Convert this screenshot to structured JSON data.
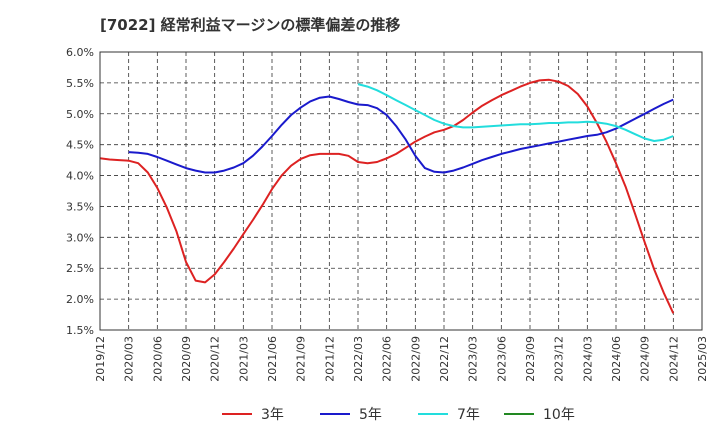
{
  "title": "[7022]  経常利益マージンの標準偏差の推移",
  "chart_data": {
    "type": "line",
    "title": "[7022]  経常利益マージンの標準偏差の推移",
    "xlabel": "",
    "ylabel": "",
    "x_ticks": [
      "2019/12",
      "2020/03",
      "2020/06",
      "2020/09",
      "2020/12",
      "2021/03",
      "2021/06",
      "2021/09",
      "2021/12",
      "2022/03",
      "2022/06",
      "2022/09",
      "2022/12",
      "2023/03",
      "2023/06",
      "2023/09",
      "2023/12",
      "2024/03",
      "2024/06",
      "2024/09",
      "2024/12",
      "2025/03"
    ],
    "y_ticks": [
      "1.5%",
      "2.0%",
      "2.5%",
      "3.0%",
      "3.5%",
      "4.0%",
      "4.5%",
      "5.0%",
      "5.5%",
      "6.0%"
    ],
    "ylim": [
      1.5,
      6.0
    ],
    "grid": true,
    "legend_position": "bottom",
    "series": [
      {
        "name": "3年",
        "color": "#dd2222",
        "x": [
          "2019/12",
          "2020/01",
          "2020/02",
          "2020/03",
          "2020/04",
          "2020/05",
          "2020/06",
          "2020/07",
          "2020/08",
          "2020/09",
          "2020/10",
          "2020/11",
          "2020/12",
          "2021/01",
          "2021/02",
          "2021/03",
          "2021/04",
          "2021/05",
          "2021/06",
          "2021/07",
          "2021/08",
          "2021/09",
          "2021/10",
          "2021/11",
          "2021/12",
          "2022/01",
          "2022/02",
          "2022/03",
          "2022/04",
          "2022/05",
          "2022/06",
          "2022/07",
          "2022/08",
          "2022/09",
          "2022/10",
          "2022/11",
          "2022/12",
          "2023/01",
          "2023/02",
          "2023/03",
          "2023/04",
          "2023/05",
          "2023/06",
          "2023/07",
          "2023/08",
          "2023/09",
          "2023/10",
          "2023/11",
          "2023/12",
          "2024/01",
          "2024/02",
          "2024/03",
          "2024/04",
          "2024/05",
          "2024/06",
          "2024/07",
          "2024/08",
          "2024/09",
          "2024/10",
          "2024/11",
          "2024/12"
        ],
        "values": [
          4.28,
          4.26,
          4.25,
          4.24,
          4.2,
          4.05,
          3.8,
          3.48,
          3.1,
          2.6,
          2.3,
          2.27,
          2.4,
          2.6,
          2.82,
          3.05,
          3.28,
          3.52,
          3.78,
          4.0,
          4.16,
          4.27,
          4.33,
          4.35,
          4.35,
          4.35,
          4.32,
          4.22,
          4.2,
          4.22,
          4.28,
          4.35,
          4.45,
          4.55,
          4.63,
          4.7,
          4.74,
          4.8,
          4.9,
          5.02,
          5.13,
          5.22,
          5.3,
          5.37,
          5.44,
          5.5,
          5.54,
          5.55,
          5.52,
          5.45,
          5.32,
          5.12,
          4.85,
          4.55,
          4.2,
          3.82,
          3.38,
          2.92,
          2.48,
          2.1,
          1.77
        ]
      },
      {
        "name": "5年",
        "color": "#1a1acc",
        "x": [
          "2020/03",
          "2020/04",
          "2020/05",
          "2020/06",
          "2020/07",
          "2020/08",
          "2020/09",
          "2020/10",
          "2020/11",
          "2020/12",
          "2021/01",
          "2021/02",
          "2021/03",
          "2021/04",
          "2021/05",
          "2021/06",
          "2021/07",
          "2021/08",
          "2021/09",
          "2021/10",
          "2021/11",
          "2021/12",
          "2022/01",
          "2022/02",
          "2022/03",
          "2022/04",
          "2022/05",
          "2022/06",
          "2022/07",
          "2022/08",
          "2022/09",
          "2022/10",
          "2022/11",
          "2022/12",
          "2023/01",
          "2023/02",
          "2023/03",
          "2023/04",
          "2023/05",
          "2023/06",
          "2023/07",
          "2023/08",
          "2023/09",
          "2023/10",
          "2023/11",
          "2023/12",
          "2024/01",
          "2024/02",
          "2024/03",
          "2024/04",
          "2024/05",
          "2024/06",
          "2024/07",
          "2024/08",
          "2024/09",
          "2024/10",
          "2024/11",
          "2024/12"
        ],
        "values": [
          4.38,
          4.37,
          4.35,
          4.3,
          4.24,
          4.18,
          4.12,
          4.08,
          4.05,
          4.05,
          4.08,
          4.13,
          4.2,
          4.32,
          4.47,
          4.64,
          4.82,
          4.98,
          5.1,
          5.2,
          5.26,
          5.28,
          5.24,
          5.19,
          5.15,
          5.14,
          5.09,
          4.98,
          4.8,
          4.58,
          4.32,
          4.12,
          4.06,
          4.05,
          4.08,
          4.13,
          4.19,
          4.25,
          4.3,
          4.35,
          4.39,
          4.43,
          4.46,
          4.49,
          4.52,
          4.55,
          4.58,
          4.61,
          4.64,
          4.66,
          4.7,
          4.76,
          4.84,
          4.92,
          5.0,
          5.08,
          5.16,
          5.23
        ]
      },
      {
        "name": "7年",
        "color": "#22dddd",
        "x": [
          "2022/03",
          "2022/04",
          "2022/05",
          "2022/06",
          "2022/07",
          "2022/08",
          "2022/09",
          "2022/10",
          "2022/11",
          "2022/12",
          "2023/01",
          "2023/02",
          "2023/03",
          "2023/04",
          "2023/05",
          "2023/06",
          "2023/07",
          "2023/08",
          "2023/09",
          "2023/10",
          "2023/11",
          "2023/12",
          "2024/01",
          "2024/02",
          "2024/03",
          "2024/04",
          "2024/05",
          "2024/06",
          "2024/07",
          "2024/08",
          "2024/09",
          "2024/10",
          "2024/11",
          "2024/12"
        ],
        "values": [
          5.48,
          5.44,
          5.38,
          5.3,
          5.22,
          5.14,
          5.06,
          4.98,
          4.9,
          4.84,
          4.8,
          4.78,
          4.78,
          4.79,
          4.8,
          4.81,
          4.82,
          4.83,
          4.83,
          4.84,
          4.85,
          4.85,
          4.86,
          4.86,
          4.87,
          4.86,
          4.84,
          4.8,
          4.74,
          4.67,
          4.6,
          4.56,
          4.58,
          4.64
        ]
      },
      {
        "name": "10年",
        "color": "#228822",
        "x": [],
        "values": []
      }
    ]
  }
}
